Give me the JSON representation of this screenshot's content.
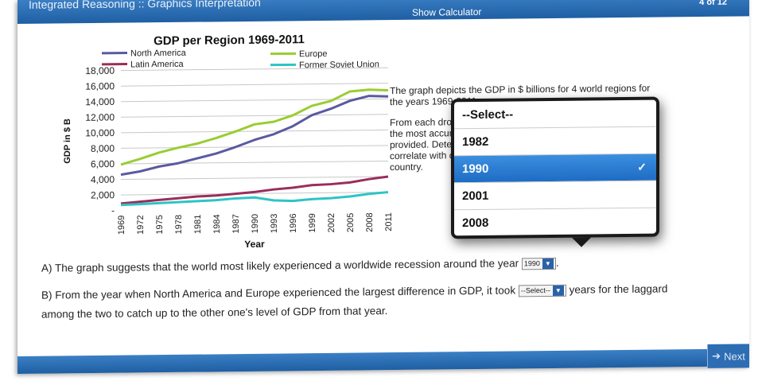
{
  "header": {
    "title": "Integrated Reasoning :: Graphics Interpretation",
    "calculator_label": "Show Calculator",
    "page_counter": "4  of 12"
  },
  "footer": {
    "next_label": "Next"
  },
  "description": {
    "p1": "The graph depicts the GDP in $ billions for 4 world regions for the years 1969-2011.",
    "p2": "From each drop-down menu, select the option that creates the most accurate statement based on the information provided. Determine whether any of the regions strongly correlate with one another, rather than a simple trend for each country."
  },
  "questions": {
    "a_text": "A) The graph suggests that the world most likely experienced a worldwide recession around the year",
    "a_value": "1990",
    "a_suffix": ".",
    "b_text_1": "B) From the year when North America and Europe experienced the largest difference in GDP, it took",
    "b_value": "--Select--",
    "b_text_2": "years for the laggard among the two to catch up to the other one's level of GDP from that year."
  },
  "dropdown": {
    "options": [
      "--Select--",
      "1982",
      "1990",
      "2001",
      "2008"
    ],
    "selected": "1990"
  },
  "chart_data": {
    "type": "line",
    "title": "GDP per Region 1969-2011",
    "xlabel": "Year",
    "ylabel": "GDP in $ B",
    "ylim": [
      0,
      18000
    ],
    "yticks": [
      "18,000",
      "16,000",
      "14,000",
      "12,000",
      "10,000",
      "8,000",
      "6,000",
      "4,000",
      "2,000",
      "-"
    ],
    "x": [
      1969,
      1972,
      1975,
      1978,
      1981,
      1984,
      1987,
      1990,
      1993,
      1996,
      1999,
      2002,
      2005,
      2008,
      2011
    ],
    "grid": true,
    "legend_position": "top",
    "series": [
      {
        "name": "North America",
        "color": "#5a5aa0",
        "values": [
          4600,
          5000,
          5600,
          6000,
          6600,
          7200,
          8000,
          8900,
          9600,
          10600,
          12000,
          12800,
          13800,
          14400,
          14300
        ]
      },
      {
        "name": "Europe",
        "color": "#9acd32",
        "values": [
          5900,
          6600,
          7400,
          8000,
          8500,
          9200,
          10000,
          10900,
          11200,
          12000,
          13200,
          13800,
          15000,
          15200,
          15100
        ]
      },
      {
        "name": "Latin America",
        "color": "#9b2d5a",
        "values": [
          900,
          1100,
          1300,
          1500,
          1700,
          1800,
          2000,
          2200,
          2500,
          2700,
          3000,
          3100,
          3300,
          3700,
          4000
        ]
      },
      {
        "name": "Former Soviet Union",
        "color": "#2ec4c4",
        "values": [
          700,
          800,
          900,
          1000,
          1100,
          1200,
          1400,
          1500,
          1100,
          1000,
          1200,
          1300,
          1500,
          1800,
          2000
        ]
      }
    ]
  },
  "colors": {
    "bar": "#2a6ab0",
    "selected_option": "#1e6cc4"
  }
}
